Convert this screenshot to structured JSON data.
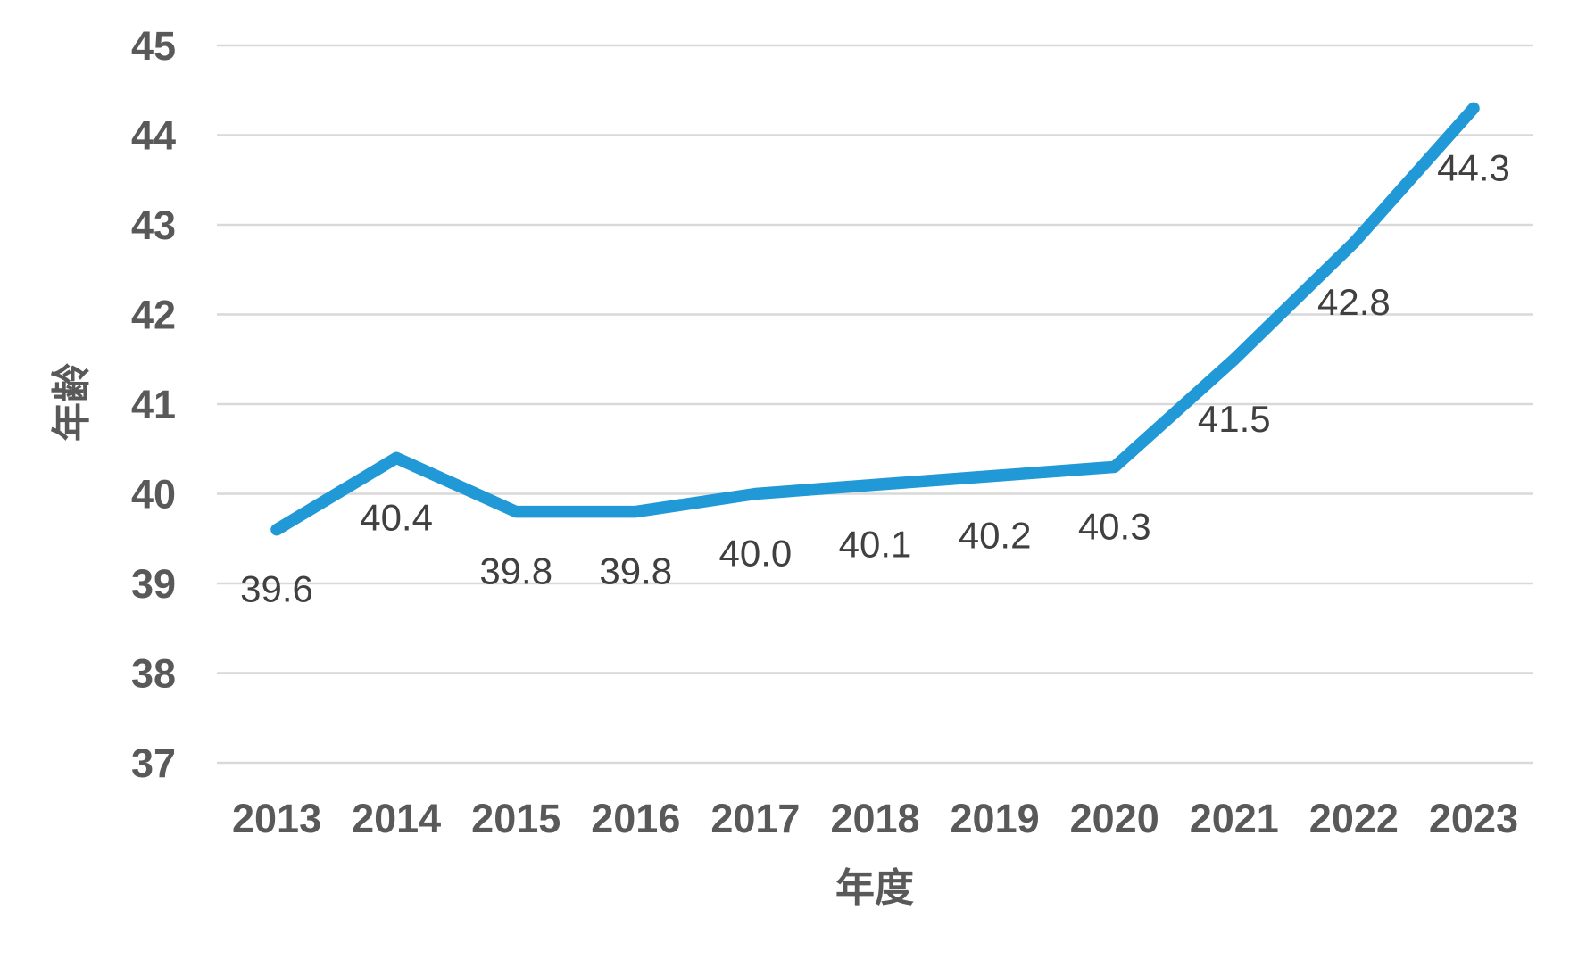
{
  "chart_data": {
    "type": "line",
    "title": "",
    "xlabel": "年度",
    "ylabel": "年齢",
    "x": [
      2013,
      2014,
      2015,
      2016,
      2017,
      2018,
      2019,
      2020,
      2021,
      2022,
      2023
    ],
    "values": [
      39.6,
      40.4,
      39.8,
      39.8,
      40.0,
      40.1,
      40.2,
      40.3,
      41.5,
      42.8,
      44.3
    ],
    "data_labels": [
      "39.6",
      "40.4",
      "39.8",
      "39.8",
      "40.0",
      "40.1",
      "40.2",
      "40.3",
      "41.5",
      "42.8",
      "44.3"
    ],
    "data_label_position": "below",
    "ylim": [
      37,
      45
    ],
    "ytick_step": 1,
    "yticks": [
      37,
      38,
      39,
      40,
      41,
      42,
      43,
      44,
      45
    ],
    "grid": "horizontal",
    "legend": "none",
    "colors": {
      "line": "#2199D6",
      "gridline": "#D9D9D9",
      "tick_label": "#595959",
      "axis_title": "#595959",
      "data_label": "#404040",
      "background": "#FFFFFF"
    }
  }
}
